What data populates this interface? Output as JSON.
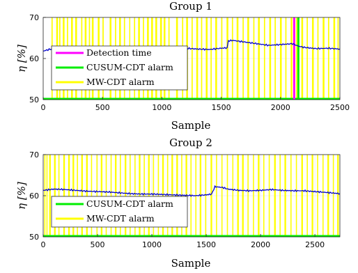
{
  "colors": {
    "efficiency": "#0000cc",
    "mw_alarm": "#ffff00",
    "cusum_alarm": "#00ee00",
    "detection": "#ff00ff",
    "grid": "#e6e6e6"
  },
  "chart_data": [
    {
      "type": "line",
      "title": "Group 1",
      "xlabel": "Sample",
      "ylabel": "η [%]",
      "xlim": [
        0,
        2500
      ],
      "ylim": [
        50,
        70
      ],
      "xticks": [
        "0",
        "500",
        "1000",
        "1500",
        "2000",
        "2500"
      ],
      "yticks": [
        "50",
        "60",
        "70"
      ],
      "grid": true,
      "legend_position": "left",
      "legend": [
        "Detection time",
        "CUSUM-CDT alarm",
        "MW-CDT alarm"
      ],
      "series": [
        {
          "kind": "efficiency",
          "x": [
            0,
            50,
            100,
            200,
            300,
            400,
            500,
            600,
            700,
            800,
            900,
            1000,
            1100,
            1200,
            1300,
            1400,
            1500,
            1550,
            1560,
            1600,
            1700,
            1800,
            1900,
            2000,
            2100,
            2150,
            2200,
            2300,
            2400,
            2500
          ],
          "y": [
            61.8,
            62.2,
            62.4,
            62.6,
            62.5,
            62.4,
            62.6,
            62.5,
            62.4,
            62.6,
            62.6,
            62.5,
            62.4,
            62.5,
            62.3,
            62.2,
            62.5,
            62.6,
            64.3,
            64.4,
            64.0,
            63.6,
            63.2,
            63.4,
            63.6,
            63.0,
            62.7,
            62.4,
            62.5,
            62.3
          ]
        },
        {
          "kind": "mw_alarm",
          "intervals": [
            [
              70,
              80
            ],
            [
              110,
              125
            ],
            [
              135,
              145
            ],
            [
              165,
              180
            ],
            [
              200,
              210
            ],
            [
              235,
              250
            ],
            [
              270,
              285
            ],
            [
              320,
              330
            ],
            [
              350,
              365
            ],
            [
              385,
              395
            ],
            [
              410,
              425
            ],
            [
              460,
              475
            ],
            [
              500,
              510
            ],
            [
              560,
              575
            ],
            [
              605,
              615
            ],
            [
              640,
              655
            ],
            [
              680,
              690
            ],
            [
              725,
              730
            ],
            [
              765,
              775
            ],
            [
              800,
              815
            ],
            [
              840,
              850
            ],
            [
              875,
              890
            ],
            [
              910,
              925
            ],
            [
              945,
              960
            ],
            [
              985,
              1000
            ],
            [
              1015,
              1030
            ],
            [
              1055,
              1065
            ],
            [
              1120,
              1135
            ],
            [
              1170,
              1180
            ],
            [
              1205,
              1220
            ],
            [
              1250,
              1260
            ],
            [
              1290,
              1305
            ],
            [
              1330,
              1340
            ],
            [
              1370,
              1385
            ],
            [
              1410,
              1420
            ],
            [
              1450,
              1465
            ],
            [
              1500,
              1510
            ],
            [
              1545,
              1560
            ],
            [
              1590,
              1600
            ],
            [
              1630,
              1645
            ],
            [
              1680,
              1690
            ],
            [
              1720,
              1735
            ],
            [
              1770,
              1780
            ],
            [
              1810,
              1825
            ],
            [
              1860,
              1870
            ],
            [
              1905,
              1920
            ],
            [
              1950,
              1960
            ],
            [
              1995,
              2010
            ],
            [
              2040,
              2050
            ],
            [
              2085,
              2100
            ],
            [
              2130,
              2140
            ],
            [
              2175,
              2190
            ],
            [
              2220,
              2230
            ],
            [
              2265,
              2280
            ],
            [
              2310,
              2320
            ],
            [
              2355,
              2370
            ],
            [
              2400,
              2410
            ],
            [
              2445,
              2460
            ],
            [
              2480,
              2490
            ]
          ]
        },
        {
          "kind": "cusum_alarm",
          "x": [
            2150
          ],
          "baseline": 50
        },
        {
          "kind": "detection",
          "x": [
            2115
          ]
        }
      ]
    },
    {
      "type": "line",
      "title": "Group 2",
      "xlabel": "Sample",
      "ylabel": "η [%]",
      "xlim": [
        0,
        2730
      ],
      "ylim": [
        50,
        70
      ],
      "xticks": [
        "0",
        "500",
        "1000",
        "1500",
        "2000",
        "2500"
      ],
      "yticks": [
        "50",
        "60",
        "70"
      ],
      "grid": true,
      "legend_position": "left",
      "legend": [
        "CUSUM-CDT alarm",
        "MW-CDT alarm"
      ],
      "series": [
        {
          "kind": "efficiency",
          "x": [
            0,
            100,
            200,
            300,
            400,
            500,
            600,
            700,
            800,
            900,
            1000,
            1100,
            1200,
            1300,
            1400,
            1500,
            1550,
            1580,
            1650,
            1700,
            1800,
            1900,
            2000,
            2100,
            2200,
            2300,
            2400,
            2500,
            2600,
            2730
          ],
          "y": [
            61.3,
            61.6,
            61.5,
            61.3,
            61.1,
            61.0,
            60.9,
            60.7,
            60.5,
            60.4,
            60.4,
            60.3,
            60.2,
            60.1,
            60.0,
            60.2,
            60.4,
            62.2,
            62.0,
            61.6,
            61.3,
            61.2,
            61.3,
            61.5,
            61.3,
            61.2,
            61.2,
            61.0,
            60.8,
            60.5
          ]
        },
        {
          "kind": "mw_alarm",
          "intervals": [
            [
              10,
              20
            ],
            [
              30,
              40
            ],
            [
              55,
              70
            ],
            [
              100,
              115
            ],
            [
              140,
              150
            ],
            [
              185,
              200
            ],
            [
              230,
              245
            ],
            [
              270,
              285
            ],
            [
              310,
              320
            ],
            [
              350,
              365
            ],
            [
              395,
              410
            ],
            [
              440,
              450
            ],
            [
              490,
              500
            ],
            [
              530,
              545
            ],
            [
              575,
              585
            ],
            [
              620,
              630
            ],
            [
              660,
              675
            ],
            [
              705,
              715
            ],
            [
              750,
              765
            ],
            [
              795,
              805
            ],
            [
              840,
              850
            ],
            [
              880,
              895
            ],
            [
              925,
              935
            ],
            [
              965,
              980
            ],
            [
              1010,
              1020
            ],
            [
              1055,
              1065
            ],
            [
              1095,
              1110
            ],
            [
              1140,
              1150
            ],
            [
              1180,
              1195
            ],
            [
              1225,
              1240
            ],
            [
              1270,
              1280
            ],
            [
              1310,
              1325
            ],
            [
              1355,
              1365
            ],
            [
              1400,
              1410
            ],
            [
              1440,
              1455
            ],
            [
              1490,
              1500
            ],
            [
              1540,
              1555
            ],
            [
              1590,
              1600
            ],
            [
              1640,
              1650
            ],
            [
              1690,
              1700
            ],
            [
              1740,
              1750
            ],
            [
              1785,
              1800
            ],
            [
              1830,
              1845
            ],
            [
              1880,
              1890
            ],
            [
              1930,
              1940
            ],
            [
              1975,
              1990
            ],
            [
              2025,
              2035
            ],
            [
              2075,
              2085
            ],
            [
              2125,
              2140
            ],
            [
              2175,
              2185
            ],
            [
              2220,
              2235
            ],
            [
              2275,
              2285
            ],
            [
              2325,
              2335
            ],
            [
              2375,
              2390
            ],
            [
              2425,
              2435
            ],
            [
              2470,
              2485
            ],
            [
              2520,
              2530
            ],
            [
              2570,
              2580
            ],
            [
              2615,
              2630
            ],
            [
              2665,
              2675
            ],
            [
              2705,
              2720
            ]
          ]
        },
        {
          "kind": "cusum_alarm",
          "x": [],
          "baseline": 50
        }
      ]
    }
  ]
}
